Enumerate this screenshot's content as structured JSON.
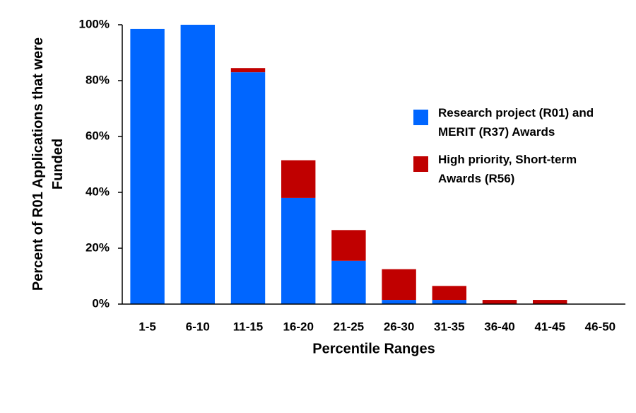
{
  "chart_data": {
    "type": "stacked_bar",
    "x_label": "Percentile Ranges",
    "y_label": "Percent of R01 Applications that were Funded",
    "categories": [
      "1-5",
      "6-10",
      "11-15",
      "16-20",
      "21-25",
      "26-30",
      "31-35",
      "36-40",
      "41-45",
      "46-50"
    ],
    "series": [
      {
        "name": "Research project (R01) and MERIT (R37) Awards",
        "color": "#0066ff",
        "values": [
          98.5,
          100,
          83,
          38,
          15.5,
          1.5,
          1.5,
          0,
          0,
          0
        ]
      },
      {
        "name": "High priority, Short-term Awards (R56)",
        "color": "#c00000",
        "values": [
          0,
          0,
          1.5,
          13.5,
          11,
          11,
          5,
          1.5,
          1.5,
          0
        ]
      }
    ],
    "ylim": [
      0,
      100
    ],
    "yticks": [
      {
        "value": 0,
        "label": "0%"
      },
      {
        "value": 20,
        "label": "20%"
      },
      {
        "value": 40,
        "label": "40%"
      },
      {
        "value": 60,
        "label": "60%"
      },
      {
        "value": 80,
        "label": "80%"
      },
      {
        "value": 100,
        "label": "100%"
      }
    ],
    "grid": false
  }
}
